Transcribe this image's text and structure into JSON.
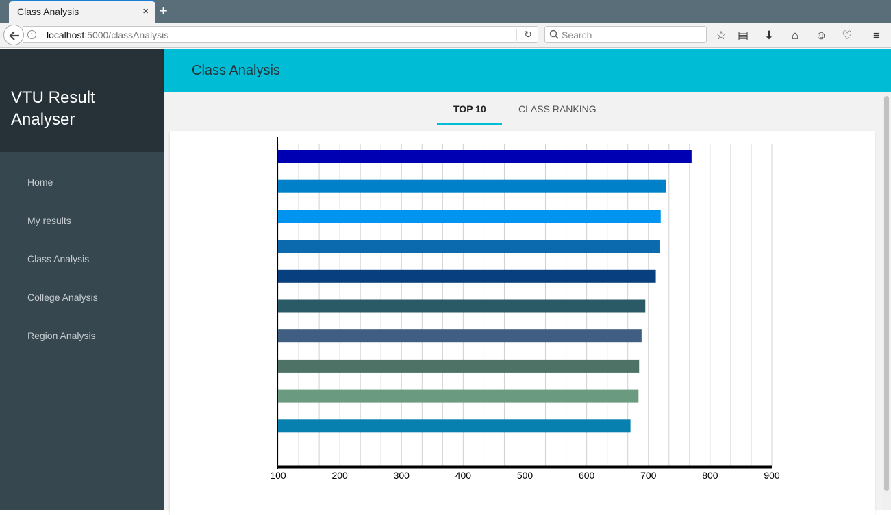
{
  "browser": {
    "tab_title": "Class Analysis",
    "tab_close": "×",
    "new_tab": "+",
    "url_host": "localhost",
    "url_path": ":5000/classAnalysis",
    "search_placeholder": "Search"
  },
  "sidebar": {
    "brand": "VTU Result Analyser",
    "items": [
      {
        "label": "Home"
      },
      {
        "label": "My results"
      },
      {
        "label": "Class Analysis"
      },
      {
        "label": "College Analysis"
      },
      {
        "label": "Region Analysis"
      }
    ]
  },
  "header": {
    "title": "Class Analysis"
  },
  "tabs": [
    {
      "label": "TOP 10",
      "active": true
    },
    {
      "label": "CLASS RANKING",
      "active": false
    }
  ],
  "chart_data": {
    "type": "bar",
    "orientation": "horizontal",
    "categories": [
      "",
      "",
      "",
      "",
      "",
      "",
      "",
      "",
      "",
      ""
    ],
    "values": [
      770,
      728,
      720,
      718,
      712,
      695,
      689,
      685,
      684,
      671
    ],
    "colors": [
      "#0000b3",
      "#0080c8",
      "#0094f0",
      "#0a6aad",
      "#083f7f",
      "#2a5a66",
      "#405d82",
      "#4e7366",
      "#6a9a80",
      "#0780b0"
    ],
    "xlim": [
      100,
      900
    ],
    "xticks": [
      100,
      200,
      300,
      400,
      500,
      600,
      700,
      800,
      900
    ],
    "grid": true,
    "title": "",
    "xlabel": "",
    "ylabel": ""
  }
}
